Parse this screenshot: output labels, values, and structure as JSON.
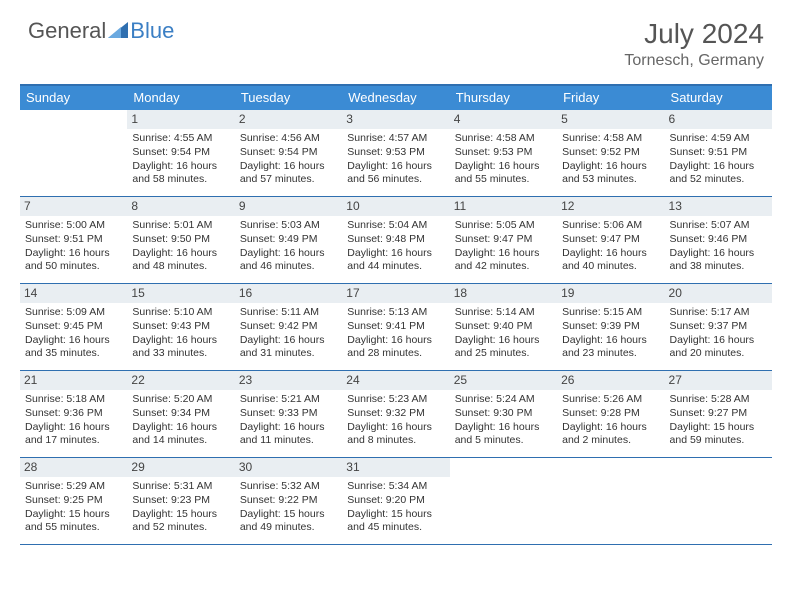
{
  "logo": {
    "part1": "General",
    "part2": "Blue"
  },
  "title": "July 2024",
  "location": "Tornesch, Germany",
  "colors": {
    "header_bg": "#3b8bd4",
    "rule": "#2f6fb0",
    "daynum_bg": "#e9eef2",
    "text": "#333333",
    "title_color": "#555555"
  },
  "weekdays": [
    "Sunday",
    "Monday",
    "Tuesday",
    "Wednesday",
    "Thursday",
    "Friday",
    "Saturday"
  ],
  "first_weekday_index": 1,
  "days": [
    {
      "n": 1,
      "sunrise": "4:55 AM",
      "sunset": "9:54 PM",
      "daylight": "16 hours and 58 minutes."
    },
    {
      "n": 2,
      "sunrise": "4:56 AM",
      "sunset": "9:54 PM",
      "daylight": "16 hours and 57 minutes."
    },
    {
      "n": 3,
      "sunrise": "4:57 AM",
      "sunset": "9:53 PM",
      "daylight": "16 hours and 56 minutes."
    },
    {
      "n": 4,
      "sunrise": "4:58 AM",
      "sunset": "9:53 PM",
      "daylight": "16 hours and 55 minutes."
    },
    {
      "n": 5,
      "sunrise": "4:58 AM",
      "sunset": "9:52 PM",
      "daylight": "16 hours and 53 minutes."
    },
    {
      "n": 6,
      "sunrise": "4:59 AM",
      "sunset": "9:51 PM",
      "daylight": "16 hours and 52 minutes."
    },
    {
      "n": 7,
      "sunrise": "5:00 AM",
      "sunset": "9:51 PM",
      "daylight": "16 hours and 50 minutes."
    },
    {
      "n": 8,
      "sunrise": "5:01 AM",
      "sunset": "9:50 PM",
      "daylight": "16 hours and 48 minutes."
    },
    {
      "n": 9,
      "sunrise": "5:03 AM",
      "sunset": "9:49 PM",
      "daylight": "16 hours and 46 minutes."
    },
    {
      "n": 10,
      "sunrise": "5:04 AM",
      "sunset": "9:48 PM",
      "daylight": "16 hours and 44 minutes."
    },
    {
      "n": 11,
      "sunrise": "5:05 AM",
      "sunset": "9:47 PM",
      "daylight": "16 hours and 42 minutes."
    },
    {
      "n": 12,
      "sunrise": "5:06 AM",
      "sunset": "9:47 PM",
      "daylight": "16 hours and 40 minutes."
    },
    {
      "n": 13,
      "sunrise": "5:07 AM",
      "sunset": "9:46 PM",
      "daylight": "16 hours and 38 minutes."
    },
    {
      "n": 14,
      "sunrise": "5:09 AM",
      "sunset": "9:45 PM",
      "daylight": "16 hours and 35 minutes."
    },
    {
      "n": 15,
      "sunrise": "5:10 AM",
      "sunset": "9:43 PM",
      "daylight": "16 hours and 33 minutes."
    },
    {
      "n": 16,
      "sunrise": "5:11 AM",
      "sunset": "9:42 PM",
      "daylight": "16 hours and 31 minutes."
    },
    {
      "n": 17,
      "sunrise": "5:13 AM",
      "sunset": "9:41 PM",
      "daylight": "16 hours and 28 minutes."
    },
    {
      "n": 18,
      "sunrise": "5:14 AM",
      "sunset": "9:40 PM",
      "daylight": "16 hours and 25 minutes."
    },
    {
      "n": 19,
      "sunrise": "5:15 AM",
      "sunset": "9:39 PM",
      "daylight": "16 hours and 23 minutes."
    },
    {
      "n": 20,
      "sunrise": "5:17 AM",
      "sunset": "9:37 PM",
      "daylight": "16 hours and 20 minutes."
    },
    {
      "n": 21,
      "sunrise": "5:18 AM",
      "sunset": "9:36 PM",
      "daylight": "16 hours and 17 minutes."
    },
    {
      "n": 22,
      "sunrise": "5:20 AM",
      "sunset": "9:34 PM",
      "daylight": "16 hours and 14 minutes."
    },
    {
      "n": 23,
      "sunrise": "5:21 AM",
      "sunset": "9:33 PM",
      "daylight": "16 hours and 11 minutes."
    },
    {
      "n": 24,
      "sunrise": "5:23 AM",
      "sunset": "9:32 PM",
      "daylight": "16 hours and 8 minutes."
    },
    {
      "n": 25,
      "sunrise": "5:24 AM",
      "sunset": "9:30 PM",
      "daylight": "16 hours and 5 minutes."
    },
    {
      "n": 26,
      "sunrise": "5:26 AM",
      "sunset": "9:28 PM",
      "daylight": "16 hours and 2 minutes."
    },
    {
      "n": 27,
      "sunrise": "5:28 AM",
      "sunset": "9:27 PM",
      "daylight": "15 hours and 59 minutes."
    },
    {
      "n": 28,
      "sunrise": "5:29 AM",
      "sunset": "9:25 PM",
      "daylight": "15 hours and 55 minutes."
    },
    {
      "n": 29,
      "sunrise": "5:31 AM",
      "sunset": "9:23 PM",
      "daylight": "15 hours and 52 minutes."
    },
    {
      "n": 30,
      "sunrise": "5:32 AM",
      "sunset": "9:22 PM",
      "daylight": "15 hours and 49 minutes."
    },
    {
      "n": 31,
      "sunrise": "5:34 AM",
      "sunset": "9:20 PM",
      "daylight": "15 hours and 45 minutes."
    }
  ],
  "labels": {
    "sunrise": "Sunrise:",
    "sunset": "Sunset:",
    "daylight": "Daylight:"
  }
}
